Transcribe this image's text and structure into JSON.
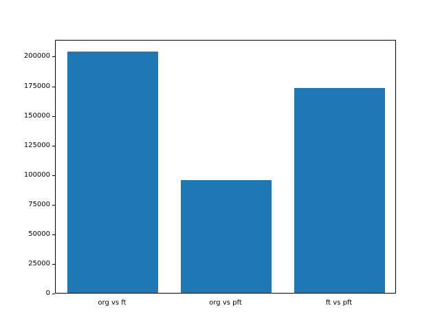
{
  "chart_data": {
    "type": "bar",
    "title": "",
    "xlabel": "",
    "ylabel": "",
    "categories": [
      "org vs ft",
      "org vs pft",
      "ft vs pft"
    ],
    "values": [
      204000,
      95000,
      173000
    ],
    "yticks": [
      0,
      25000,
      50000,
      75000,
      100000,
      125000,
      150000,
      175000,
      200000
    ],
    "ylim": [
      0,
      214200
    ],
    "bar_color": "#1f77b4",
    "grid": false,
    "legend": "none",
    "bar_width_fraction": 0.8
  }
}
